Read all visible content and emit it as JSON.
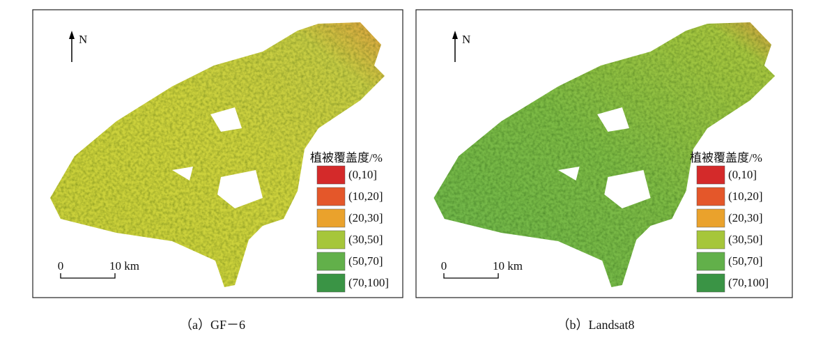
{
  "panels": [
    {
      "north": "N",
      "scale_start": "0",
      "scale_end": "10 km",
      "legend_title": "植被覆盖度/%",
      "legend": [
        {
          "label": "(0,10]",
          "color": "#d42a2a"
        },
        {
          "label": "(10,20]",
          "color": "#e4572a"
        },
        {
          "label": "(20,30]",
          "color": "#eaa22c"
        },
        {
          "label": "(30,50]",
          "color": "#a6c63a"
        },
        {
          "label": "(50,70]",
          "color": "#62b04a"
        },
        {
          "label": "(70,100]",
          "color": "#3a9445"
        }
      ],
      "caption": "（a）GF－6"
    },
    {
      "north": "N",
      "scale_start": "0",
      "scale_end": "10 km",
      "legend_title": "植被覆盖度/%",
      "legend": [
        {
          "label": "(0,10]",
          "color": "#d42a2a"
        },
        {
          "label": "(10,20]",
          "color": "#e4572a"
        },
        {
          "label": "(20,30]",
          "color": "#eaa22c"
        },
        {
          "label": "(30,50]",
          "color": "#a6c63a"
        },
        {
          "label": "(50,70]",
          "color": "#62b04a"
        },
        {
          "label": "(70,100]",
          "color": "#3a9445"
        }
      ],
      "caption": "（b）Landsat8"
    }
  ]
}
